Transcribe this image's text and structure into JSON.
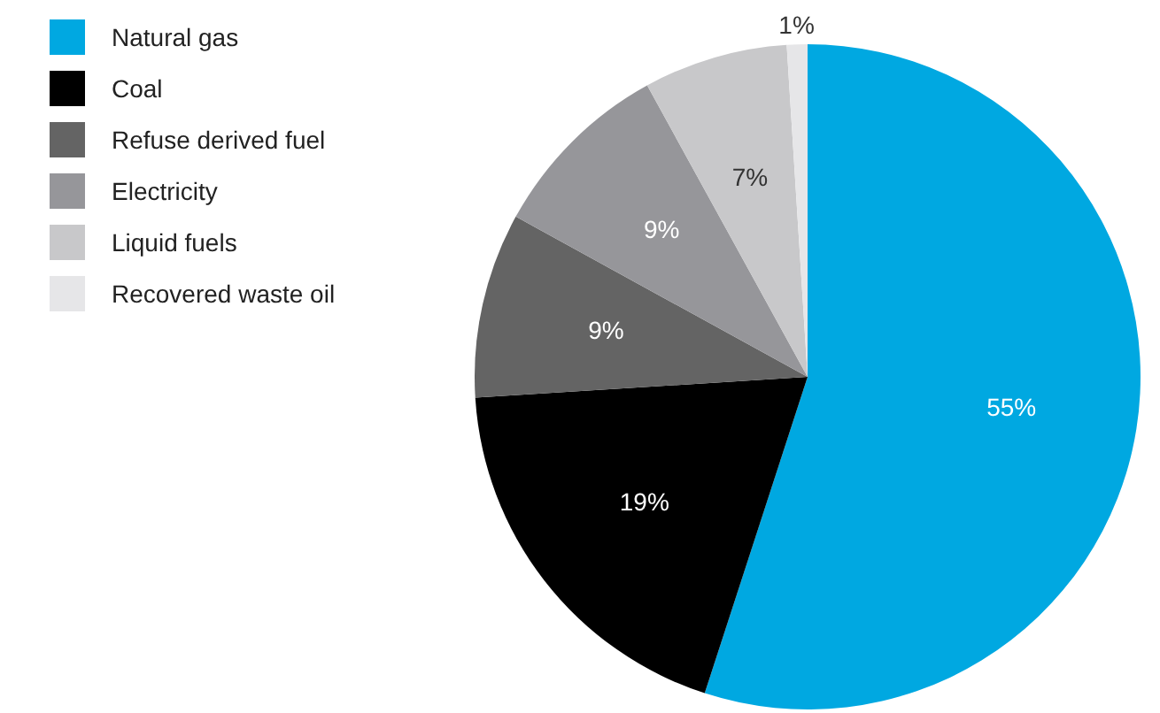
{
  "chart_data": {
    "type": "pie",
    "categories": [
      "Natural gas",
      "Coal",
      "Refuse derived fuel",
      "Electricity",
      "Liquid fuels",
      "Recovered waste oil"
    ],
    "values": [
      55,
      19,
      9,
      9,
      7,
      1
    ],
    "colors": [
      "#00a8e1",
      "#000000",
      "#646464",
      "#96969a",
      "#c8c8ca",
      "#e6e6e8"
    ],
    "value_labels": [
      "55%",
      "19%",
      "9%",
      "9%",
      "7%",
      "1%"
    ],
    "legend": "top left"
  }
}
